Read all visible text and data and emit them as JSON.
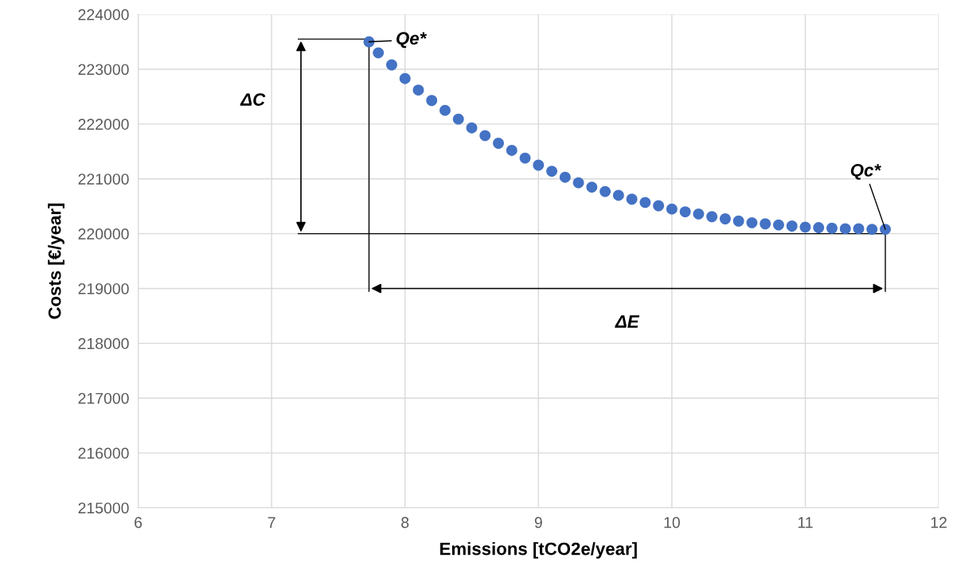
{
  "chart_data": {
    "type": "scatter",
    "xlabel": "Emissions [tCO2e/year]",
    "ylabel": "Costs [€/year]",
    "xlim": [
      6,
      12
    ],
    "xticks": [
      6,
      7,
      8,
      9,
      10,
      11,
      12
    ],
    "ylim": [
      215000,
      224000
    ],
    "yticks": [
      215000,
      216000,
      217000,
      218000,
      219000,
      220000,
      221000,
      222000,
      223000,
      224000
    ],
    "grid": true,
    "marker": "circle",
    "series": [
      {
        "color": "#4472c4",
        "x": [
          7.73,
          7.8,
          7.9,
          8.0,
          8.1,
          8.2,
          8.3,
          8.4,
          8.5,
          8.6,
          8.7,
          8.8,
          8.9,
          9.0,
          9.1,
          9.2,
          9.3,
          9.4,
          9.5,
          9.6,
          9.7,
          9.8,
          9.9,
          10.0,
          10.1,
          10.2,
          10.3,
          10.4,
          10.5,
          10.6,
          10.7,
          10.8,
          10.9,
          11.0,
          11.1,
          11.2,
          11.3,
          11.4,
          11.5,
          11.6
        ],
        "values": [
          223500,
          223300,
          223080,
          222830,
          222620,
          222430,
          222250,
          222090,
          221930,
          221790,
          221650,
          221520,
          221380,
          221250,
          221140,
          221030,
          220930,
          220850,
          220770,
          220700,
          220630,
          220570,
          220510,
          220450,
          220400,
          220360,
          220310,
          220270,
          220230,
          220200,
          220180,
          220160,
          220140,
          220120,
          220110,
          220100,
          220090,
          220090,
          220080,
          220080
        ]
      },
      {
        "type": "line",
        "color": "#000000",
        "marker": "none",
        "x": [
          7.2,
          7.73
        ],
        "values": [
          223550,
          223550
        ]
      },
      {
        "type": "line",
        "color": "#000000",
        "marker": "none",
        "x": [
          7.2,
          11.6
        ],
        "values": [
          220000,
          220000
        ]
      },
      {
        "type": "line",
        "color": "#000000",
        "marker": "none",
        "x": [
          7.73,
          7.73
        ],
        "values": [
          223550,
          218950
        ]
      },
      {
        "type": "line",
        "color": "#000000",
        "marker": "none",
        "x": [
          11.6,
          11.6
        ],
        "values": [
          220080,
          218950
        ]
      }
    ],
    "annotations": [
      {
        "text": "Qe*",
        "x": 7.73,
        "y": 223500
      },
      {
        "text": "Qc*",
        "x": 11.6,
        "y": 220080
      },
      "ΔC",
      "ΔE"
    ]
  }
}
